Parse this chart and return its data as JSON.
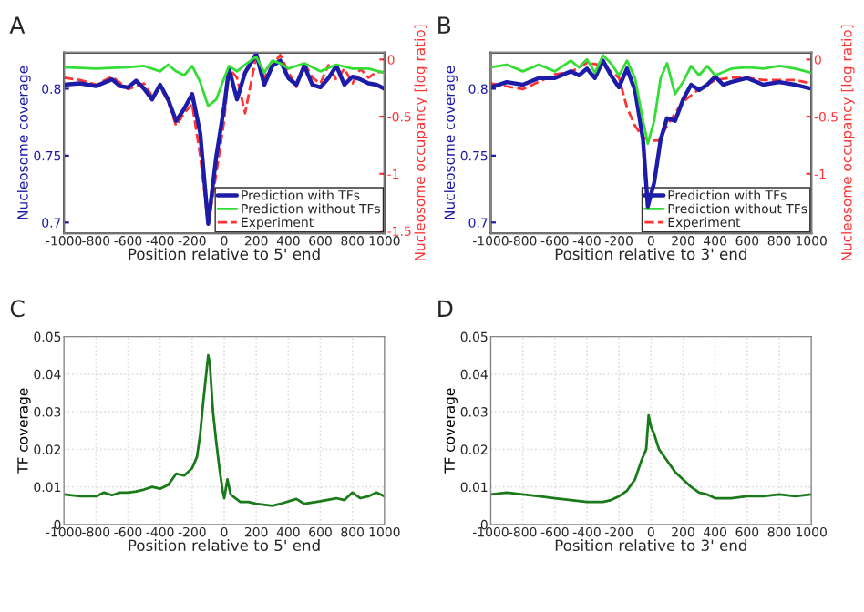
{
  "chart_data": [
    {
      "type": "line",
      "title": "A",
      "xlabel": "Position relative to 5' end",
      "ylabel": "Nucleosome coverage",
      "y2label": "Nucleosome occupancy [log ratio]",
      "xlim": [
        -1000,
        1000
      ],
      "xticks": [
        -1000,
        -800,
        -600,
        -400,
        -200,
        0,
        200,
        400,
        600,
        800,
        1000
      ],
      "ylim": [
        0.692,
        0.827
      ],
      "yticks": [
        0.7,
        0.75,
        0.8
      ],
      "y2lim": [
        -1.52,
        0.06
      ],
      "y2ticks": [
        -1.5,
        -1,
        -0.5,
        0
      ],
      "legend": "bottom right",
      "grid": false,
      "series": [
        {
          "name": "Prediction with TFs",
          "color": "#1c1ca8",
          "axis": "y",
          "line_style": "solid",
          "x": [
            -1000,
            -900,
            -800,
            -700,
            -650,
            -600,
            -550,
            -500,
            -450,
            -400,
            -350,
            -300,
            -250,
            -200,
            -150,
            -100,
            -50,
            0,
            30,
            80,
            130,
            200,
            250,
            300,
            350,
            400,
            450,
            500,
            550,
            600,
            650,
            700,
            750,
            800,
            850,
            900,
            950,
            1000
          ],
          "values": [
            0.803,
            0.804,
            0.802,
            0.807,
            0.802,
            0.801,
            0.806,
            0.8,
            0.792,
            0.803,
            0.792,
            0.776,
            0.785,
            0.796,
            0.767,
            0.699,
            0.749,
            0.787,
            0.815,
            0.792,
            0.812,
            0.826,
            0.803,
            0.817,
            0.821,
            0.808,
            0.803,
            0.817,
            0.803,
            0.801,
            0.808,
            0.817,
            0.803,
            0.809,
            0.807,
            0.804,
            0.803,
            0.8
          ]
        },
        {
          "name": "Prediction without TFs",
          "color": "#33dd33",
          "axis": "y",
          "line_style": "solid",
          "x": [
            -1000,
            -800,
            -600,
            -500,
            -400,
            -350,
            -300,
            -250,
            -200,
            -150,
            -100,
            -50,
            0,
            30,
            80,
            130,
            200,
            250,
            300,
            350,
            400,
            500,
            600,
            700,
            800,
            900,
            1000
          ],
          "values": [
            0.816,
            0.815,
            0.816,
            0.817,
            0.813,
            0.818,
            0.813,
            0.81,
            0.817,
            0.805,
            0.787,
            0.792,
            0.808,
            0.817,
            0.813,
            0.818,
            0.824,
            0.812,
            0.821,
            0.819,
            0.815,
            0.819,
            0.813,
            0.818,
            0.815,
            0.815,
            0.812
          ]
        },
        {
          "name": "Experiment",
          "color": "#ff3333",
          "axis": "y2",
          "line_style": "dashed",
          "x": [
            -1000,
            -900,
            -800,
            -700,
            -600,
            -500,
            -450,
            -400,
            -350,
            -300,
            -250,
            -200,
            -150,
            -100,
            -50,
            0,
            30,
            80,
            130,
            200,
            250,
            300,
            350,
            400,
            450,
            500,
            550,
            600,
            650,
            700,
            750,
            800,
            850,
            900,
            950,
            1000
          ],
          "values": [
            -0.16,
            -0.18,
            -0.22,
            -0.15,
            -0.26,
            -0.21,
            -0.32,
            -0.24,
            -0.37,
            -0.58,
            -0.47,
            -0.39,
            -0.84,
            -1.45,
            -1.0,
            -0.53,
            -0.08,
            -0.16,
            -0.47,
            0.03,
            -0.16,
            -0.05,
            0.04,
            -0.11,
            -0.24,
            -0.03,
            -0.16,
            -0.21,
            -0.05,
            -0.18,
            -0.08,
            -0.21,
            -0.08,
            -0.16,
            -0.11,
            -0.11
          ]
        }
      ]
    },
    {
      "type": "line",
      "title": "B",
      "xlabel": "Position relative to 3' end",
      "ylabel": "Nucleosome coverage",
      "y2label": "Nucleosome occupancy [log ratio]",
      "xlim": [
        -1000,
        1000
      ],
      "xticks": [
        -1000,
        -800,
        -600,
        -400,
        -200,
        0,
        200,
        400,
        600,
        800,
        1000
      ],
      "ylim": [
        0.692,
        0.827
      ],
      "yticks": [
        0.7,
        0.75,
        0.8
      ],
      "y2lim": [
        -1.52,
        0.06
      ],
      "y2ticks": [
        -1,
        -0.5,
        0
      ],
      "legend": "bottom right",
      "grid": false,
      "series": [
        {
          "name": "Prediction with TFs",
          "color": "#1c1ca8",
          "axis": "y",
          "line_style": "solid",
          "x": [
            -1000,
            -900,
            -800,
            -700,
            -600,
            -500,
            -450,
            -400,
            -350,
            -300,
            -250,
            -200,
            -150,
            -100,
            -50,
            -20,
            20,
            60,
            100,
            150,
            200,
            250,
            300,
            350,
            400,
            450,
            500,
            600,
            700,
            800,
            900,
            1000
          ],
          "values": [
            0.801,
            0.805,
            0.803,
            0.808,
            0.808,
            0.813,
            0.81,
            0.815,
            0.808,
            0.821,
            0.81,
            0.801,
            0.815,
            0.799,
            0.762,
            0.712,
            0.73,
            0.762,
            0.778,
            0.776,
            0.792,
            0.803,
            0.799,
            0.803,
            0.809,
            0.803,
            0.805,
            0.808,
            0.803,
            0.805,
            0.803,
            0.8
          ]
        },
        {
          "name": "Prediction without TFs",
          "color": "#33dd33",
          "axis": "y",
          "line_style": "solid",
          "x": [
            -1000,
            -900,
            -800,
            -700,
            -600,
            -500,
            -450,
            -400,
            -350,
            -300,
            -250,
            -200,
            -150,
            -100,
            -50,
            -20,
            20,
            60,
            100,
            150,
            200,
            250,
            300,
            350,
            400,
            500,
            600,
            700,
            800,
            900,
            1000
          ],
          "values": [
            0.816,
            0.818,
            0.813,
            0.818,
            0.813,
            0.821,
            0.816,
            0.822,
            0.812,
            0.825,
            0.819,
            0.81,
            0.821,
            0.808,
            0.776,
            0.759,
            0.776,
            0.808,
            0.819,
            0.796,
            0.805,
            0.817,
            0.81,
            0.817,
            0.81,
            0.815,
            0.816,
            0.815,
            0.817,
            0.815,
            0.812
          ]
        },
        {
          "name": "Experiment",
          "color": "#ff3333",
          "axis": "y2",
          "line_style": "dashed",
          "x": [
            -1000,
            -800,
            -600,
            -500,
            -400,
            -300,
            -200,
            -150,
            -100,
            -50,
            0,
            50,
            100,
            150,
            200,
            300,
            400,
            500,
            600,
            700,
            800,
            900,
            1000
          ],
          "values": [
            -0.21,
            -0.26,
            -0.13,
            -0.11,
            -0.03,
            -0.05,
            -0.16,
            -0.42,
            -0.58,
            -0.68,
            -0.71,
            -0.71,
            -0.58,
            -0.47,
            -0.37,
            -0.26,
            -0.18,
            -0.16,
            -0.16,
            -0.18,
            -0.18,
            -0.18,
            -0.21
          ]
        }
      ]
    },
    {
      "type": "line",
      "title": "C",
      "xlabel": "Position relative to 5' end",
      "ylabel": "TF coverage",
      "xlim": [
        -1000,
        1000
      ],
      "xticks": [
        -1000,
        -800,
        -600,
        -400,
        -200,
        0,
        200,
        400,
        600,
        800,
        1000
      ],
      "ylim": [
        0,
        0.05
      ],
      "yticks": [
        0,
        0.01,
        0.02,
        0.03,
        0.04,
        0.05
      ],
      "grid": true,
      "series": [
        {
          "color": "#1a7a1a",
          "line_style": "solid",
          "x": [
            -1000,
            -900,
            -800,
            -750,
            -700,
            -650,
            -600,
            -550,
            -500,
            -450,
            -400,
            -350,
            -300,
            -250,
            -200,
            -170,
            -150,
            -130,
            -110,
            -100,
            -90,
            -70,
            -50,
            -30,
            -10,
            0,
            20,
            40,
            100,
            150,
            200,
            300,
            350,
            450,
            500,
            600,
            700,
            750,
            800,
            850,
            900,
            950,
            1000
          ],
          "values": [
            0.008,
            0.0075,
            0.0075,
            0.0085,
            0.0078,
            0.0085,
            0.0085,
            0.0088,
            0.0093,
            0.01,
            0.0095,
            0.0105,
            0.0135,
            0.013,
            0.015,
            0.018,
            0.024,
            0.033,
            0.041,
            0.045,
            0.043,
            0.03,
            0.022,
            0.015,
            0.009,
            0.007,
            0.012,
            0.008,
            0.006,
            0.006,
            0.0055,
            0.005,
            0.0055,
            0.0068,
            0.0055,
            0.0062,
            0.007,
            0.0065,
            0.0085,
            0.007,
            0.0075,
            0.0085,
            0.0075
          ]
        }
      ]
    },
    {
      "type": "line",
      "title": "D",
      "xlabel": "Position relative to 3' end",
      "ylabel": "TF coverage",
      "xlim": [
        -1000,
        1000
      ],
      "xticks": [
        -1000,
        -800,
        -600,
        -400,
        -200,
        0,
        200,
        400,
        600,
        800,
        1000
      ],
      "ylim": [
        0,
        0.05
      ],
      "yticks": [
        0,
        0.01,
        0.02,
        0.03,
        0.04,
        0.05
      ],
      "grid": true,
      "series": [
        {
          "color": "#1a7a1a",
          "line_style": "solid",
          "x": [
            -1000,
            -900,
            -800,
            -700,
            -600,
            -500,
            -400,
            -300,
            -250,
            -200,
            -150,
            -100,
            -60,
            -30,
            -15,
            0,
            20,
            50,
            100,
            150,
            200,
            250,
            300,
            350,
            400,
            500,
            600,
            700,
            800,
            900,
            1000
          ],
          "values": [
            0.008,
            0.0085,
            0.008,
            0.0075,
            0.007,
            0.0065,
            0.006,
            0.006,
            0.0065,
            0.0075,
            0.009,
            0.012,
            0.017,
            0.02,
            0.029,
            0.026,
            0.024,
            0.02,
            0.017,
            0.014,
            0.012,
            0.01,
            0.0085,
            0.008,
            0.007,
            0.007,
            0.0075,
            0.0075,
            0.008,
            0.0075,
            0.008
          ]
        }
      ]
    }
  ]
}
